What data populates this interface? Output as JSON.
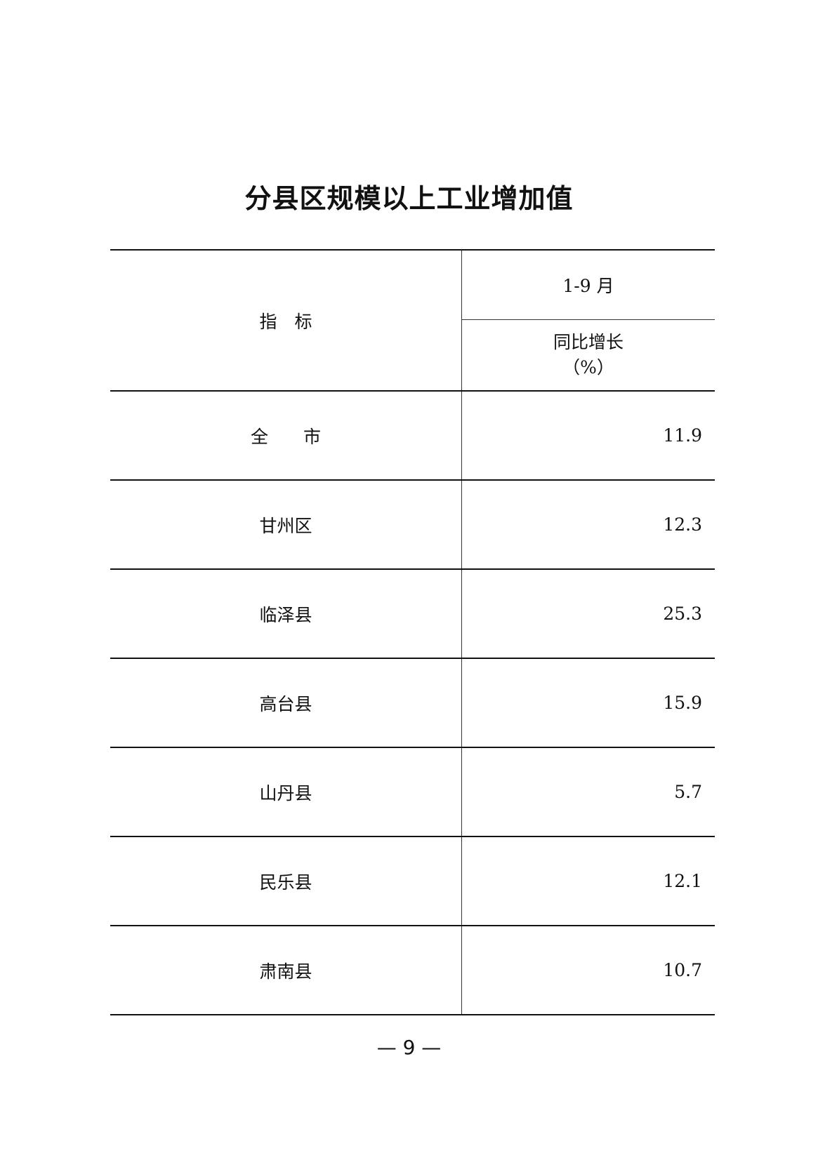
{
  "title": "分县区规模以上工业增加值",
  "header": {
    "indicator": "指　标",
    "period": "1-9 月",
    "metric": "同比增长",
    "unit": "（%）"
  },
  "rows": [
    {
      "name": "全　　市",
      "value": "11.9"
    },
    {
      "name": "甘州区",
      "value": "12.3"
    },
    {
      "name": "临泽县",
      "value": "25.3"
    },
    {
      "name": "高台县",
      "value": "15.9"
    },
    {
      "name": "山丹县",
      "value": "5.7"
    },
    {
      "name": "民乐县",
      "value": "12.1"
    },
    {
      "name": "肃南县",
      "value": "10.7"
    }
  ],
  "page_number": "— 9 —"
}
